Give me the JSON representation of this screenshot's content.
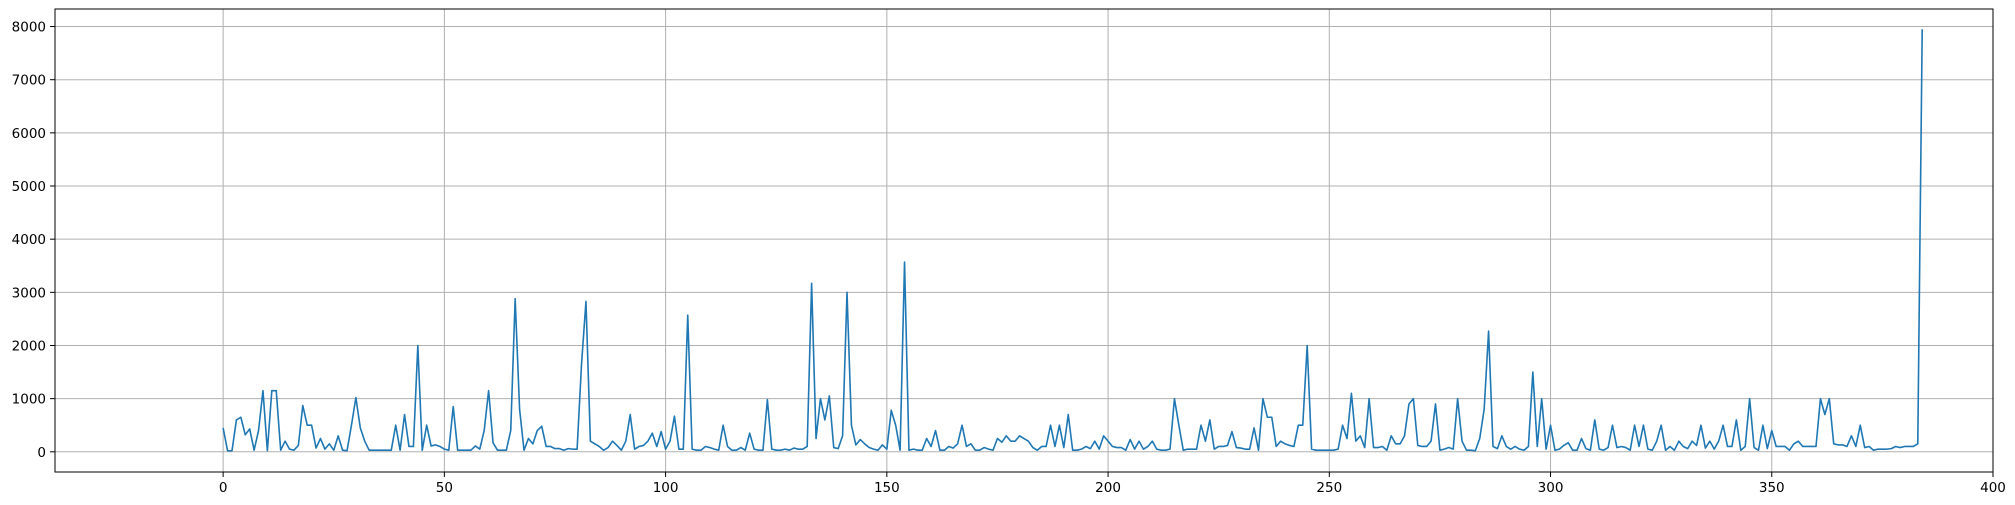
{
  "chart_data": {
    "type": "line",
    "title": "",
    "xlabel": "",
    "ylabel": "",
    "xlim": [
      -38,
      400
    ],
    "ylim": [
      -380,
      8330
    ],
    "xticks": [
      0,
      50,
      100,
      150,
      200,
      250,
      300,
      350,
      400
    ],
    "yticks": [
      0,
      1000,
      2000,
      3000,
      4000,
      5000,
      6000,
      7000,
      8000
    ],
    "grid": true,
    "legend": "none",
    "colors": {
      "line": "#1f77b4",
      "grid": "#b0b0b0",
      "axis": "#000000"
    },
    "series": [
      {
        "values": [
          450,
          20,
          20,
          600,
          650,
          320,
          430,
          30,
          400,
          1150,
          20,
          1150,
          1150,
          30,
          200,
          50,
          30,
          120,
          870,
          500,
          500,
          70,
          250,
          50,
          150,
          30,
          300,
          30,
          20,
          500,
          1020,
          450,
          200,
          30,
          30,
          30,
          30,
          30,
          30,
          500,
          30,
          700,
          100,
          100,
          2000,
          30,
          500,
          110,
          130,
          100,
          50,
          30,
          850,
          30,
          30,
          30,
          30,
          110,
          50,
          400,
          1150,
          170,
          30,
          30,
          30,
          400,
          2880,
          800,
          30,
          250,
          150,
          400,
          480,
          100,
          100,
          60,
          60,
          30,
          60,
          50,
          50,
          1650,
          2830,
          200,
          150,
          100,
          30,
          80,
          200,
          120,
          30,
          200,
          700,
          50,
          100,
          120,
          200,
          350,
          100,
          380,
          50,
          200,
          670,
          50,
          50,
          2570,
          50,
          30,
          30,
          100,
          80,
          50,
          30,
          500,
          100,
          30,
          30,
          80,
          30,
          350,
          50,
          30,
          30,
          980,
          50,
          30,
          30,
          50,
          30,
          70,
          50,
          50,
          100,
          3170,
          250,
          1000,
          600,
          1050,
          80,
          60,
          300,
          3000,
          500,
          130,
          230,
          150,
          80,
          50,
          30,
          130,
          50,
          780,
          500,
          30,
          3570,
          30,
          50,
          30,
          30,
          250,
          100,
          400,
          30,
          30,
          100,
          70,
          150,
          500,
          100,
          150,
          30,
          30,
          80,
          50,
          30,
          250,
          180,
          300,
          200,
          200,
          300,
          250,
          200,
          80,
          30,
          100,
          100,
          500,
          100,
          500,
          80,
          700,
          30,
          30,
          50,
          100,
          60,
          200,
          50,
          300,
          200,
          100,
          80,
          80,
          30,
          230,
          50,
          200,
          50,
          100,
          200,
          50,
          30,
          30,
          50,
          1000,
          500,
          30,
          50,
          50,
          50,
          500,
          200,
          600,
          50,
          100,
          100,
          120,
          380,
          80,
          70,
          50,
          50,
          450,
          30,
          1000,
          650,
          650,
          100,
          200,
          150,
          120,
          100,
          500,
          500,
          2000,
          50,
          30,
          30,
          30,
          30,
          30,
          50,
          500,
          250,
          1100,
          200,
          300,
          80,
          1000,
          80,
          80,
          100,
          30,
          300,
          150,
          150,
          300,
          900,
          1000,
          120,
          100,
          100,
          200,
          900,
          30,
          50,
          80,
          50,
          1000,
          200,
          30,
          30,
          20,
          250,
          800,
          2270,
          100,
          60,
          300,
          100,
          50,
          100,
          50,
          30,
          100,
          1500,
          100,
          1000,
          50,
          500,
          30,
          50,
          120,
          170,
          30,
          30,
          250,
          60,
          30,
          600,
          50,
          30,
          80,
          500,
          80,
          100,
          80,
          30,
          500,
          100,
          500,
          50,
          30,
          200,
          500,
          30,
          100,
          30,
          200,
          100,
          60,
          200,
          120,
          500,
          70,
          200,
          50,
          200,
          500,
          100,
          100,
          600,
          30,
          100,
          1000,
          80,
          30,
          500,
          60,
          400,
          100,
          100,
          100,
          30,
          150,
          200,
          100,
          100,
          100,
          100,
          1000,
          700,
          1000,
          150,
          130,
          130,
          100,
          300,
          100,
          500,
          80,
          100,
          30,
          50,
          50,
          50,
          60,
          100,
          80,
          100,
          100,
          100,
          150,
          7950
        ]
      }
    ]
  }
}
